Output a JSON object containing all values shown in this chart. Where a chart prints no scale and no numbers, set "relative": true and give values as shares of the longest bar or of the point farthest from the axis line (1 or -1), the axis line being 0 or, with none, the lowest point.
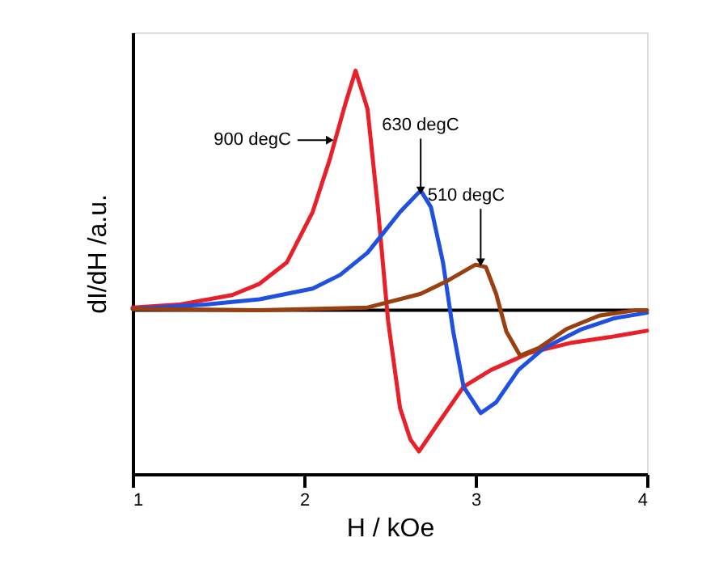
{
  "chart_data": {
    "type": "line",
    "xlabel": "H / kOe",
    "ylabel": "dI/dH  /a.u.",
    "relative": true,
    "xlim": [
      1,
      4
    ],
    "xticks": [
      1,
      2,
      3,
      4
    ],
    "grid": false,
    "marker": "none",
    "line_style": "solid",
    "series": [
      {
        "color": "#e8202a",
        "x": [
          1.0,
          1.27,
          1.58,
          1.74,
          1.9,
          2.05,
          2.15,
          2.24,
          2.3,
          2.37,
          2.43,
          2.49,
          2.56,
          2.62,
          2.67,
          2.78,
          2.93,
          3.09,
          3.31,
          3.56,
          3.78,
          4.0
        ],
        "values": [
          0.011,
          0.023,
          0.063,
          0.11,
          0.2,
          0.41,
          0.63,
          0.86,
          1.0,
          0.84,
          0.43,
          -0.045,
          -0.41,
          -0.54,
          -0.59,
          -0.475,
          -0.32,
          -0.25,
          -0.18,
          -0.136,
          -0.113,
          -0.086
        ]
      },
      {
        "color": "#2050e0",
        "x": [
          1.0,
          1.42,
          1.74,
          2.05,
          2.21,
          2.37,
          2.46,
          2.56,
          2.68,
          2.74,
          2.81,
          2.87,
          2.93,
          3.03,
          3.12,
          3.25,
          3.4,
          3.62,
          3.81,
          4.0
        ],
        "values": [
          0.005,
          0.023,
          0.045,
          0.09,
          0.147,
          0.24,
          0.32,
          0.41,
          0.5,
          0.43,
          0.2,
          -0.09,
          -0.32,
          -0.43,
          -0.385,
          -0.25,
          -0.158,
          -0.079,
          -0.034,
          -0.011
        ]
      },
      {
        "color": "#9a4010",
        "x": [
          1.0,
          1.74,
          2.37,
          2.68,
          2.84,
          3.0,
          3.06,
          3.12,
          3.18,
          3.26,
          3.37,
          3.53,
          3.72,
          3.94,
          4.0
        ],
        "values": [
          0.005,
          0.0,
          0.011,
          0.068,
          0.124,
          0.19,
          0.18,
          0.068,
          -0.09,
          -0.19,
          -0.158,
          -0.079,
          -0.023,
          0.0,
          0.0
        ]
      }
    ],
    "annotations": [
      {
        "text": "900 degC",
        "x": 2.15,
        "y": 0.71
      },
      {
        "text": "630 degC",
        "x": 2.68,
        "y": 0.5
      },
      {
        "text": "510 degC",
        "x": 3.03,
        "y": 0.2
      }
    ]
  }
}
